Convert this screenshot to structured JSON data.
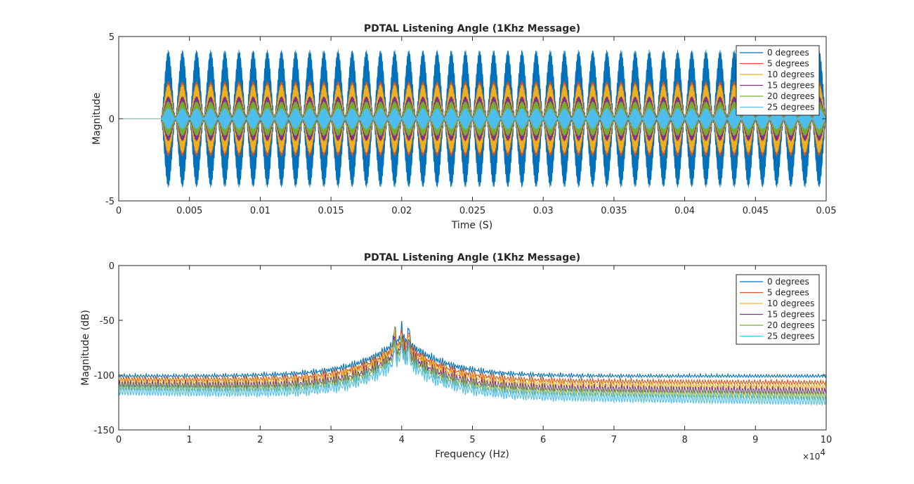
{
  "chart_data": [
    {
      "type": "line",
      "title": "PDTAL Listening Angle (1Khz Message)",
      "xlabel": "Time (S)",
      "ylabel": "Magnitude",
      "xlim": [
        0,
        0.05
      ],
      "ylim": [
        -5,
        5
      ],
      "x_ticks": [
        "0",
        "0.005",
        "0.01",
        "0.015",
        "0.02",
        "0.025",
        "0.03",
        "0.035",
        "0.04",
        "0.045",
        "0.05"
      ],
      "x_tick_values": [
        0,
        0.005,
        0.01,
        0.015,
        0.02,
        0.025,
        0.03,
        0.035,
        0.04,
        0.045,
        0.05
      ],
      "y_ticks": [
        "-5",
        "0",
        "5"
      ],
      "y_tick_values": [
        -5,
        0,
        5
      ],
      "grid": false,
      "legend_position": "top-right",
      "signal_start": 0.003,
      "envelope_frequency_hz": 1000,
      "series": [
        {
          "name": "0 degrees",
          "color": "#0072BD",
          "peak_amplitude": 4.0
        },
        {
          "name": "5 degrees",
          "color": "#D95319",
          "peak_amplitude": 2.2
        },
        {
          "name": "10 degrees",
          "color": "#EDB120",
          "peak_amplitude": 2.0
        },
        {
          "name": "15 degrees",
          "color": "#7E2F8E",
          "peak_amplitude": 1.3
        },
        {
          "name": "20 degrees",
          "color": "#77AC30",
          "peak_amplitude": 1.0
        },
        {
          "name": "25 degrees",
          "color": "#4DBEEE",
          "peak_amplitude": 0.6
        }
      ]
    },
    {
      "type": "line",
      "title": "PDTAL Listening Angle (1Khz Message)",
      "xlabel": "Frequency (Hz)",
      "ylabel": "Magnitude (dB)",
      "xlim": [
        0,
        100000
      ],
      "ylim": [
        -150,
        0
      ],
      "x_ticks": [
        "0",
        "1",
        "2",
        "3",
        "4",
        "5",
        "6",
        "7",
        "8",
        "9",
        "10"
      ],
      "x_tick_values": [
        0,
        10000,
        20000,
        30000,
        40000,
        50000,
        60000,
        70000,
        80000,
        90000,
        100000
      ],
      "x_exponent_label": "×10",
      "x_exponent_power": "4",
      "y_ticks": [
        "-150",
        "-100",
        "-50",
        "0"
      ],
      "y_tick_values": [
        -150,
        -100,
        -50,
        0
      ],
      "grid": false,
      "legend_position": "top-right",
      "peak_frequencies": [
        39000,
        40000,
        41000
      ],
      "series": [
        {
          "name": "0 degrees",
          "color": "#0072BD",
          "floor_db_at_0": -99,
          "floor_db_at_100k": -99
        },
        {
          "name": "5 degrees",
          "color": "#D95319",
          "floor_db_at_0": -101,
          "floor_db_at_100k": -104
        },
        {
          "name": "10 degrees",
          "color": "#EDB120",
          "floor_db_at_0": -102,
          "floor_db_at_100k": -107
        },
        {
          "name": "15 degrees",
          "color": "#7E2F8E",
          "floor_db_at_0": -104,
          "floor_db_at_100k": -110
        },
        {
          "name": "20 degrees",
          "color": "#77AC30",
          "floor_db_at_0": -105,
          "floor_db_at_100k": -113
        },
        {
          "name": "25 degrees",
          "color": "#4DBEEE",
          "floor_db_at_0": -108,
          "floor_db_at_100k": -117
        }
      ]
    }
  ]
}
